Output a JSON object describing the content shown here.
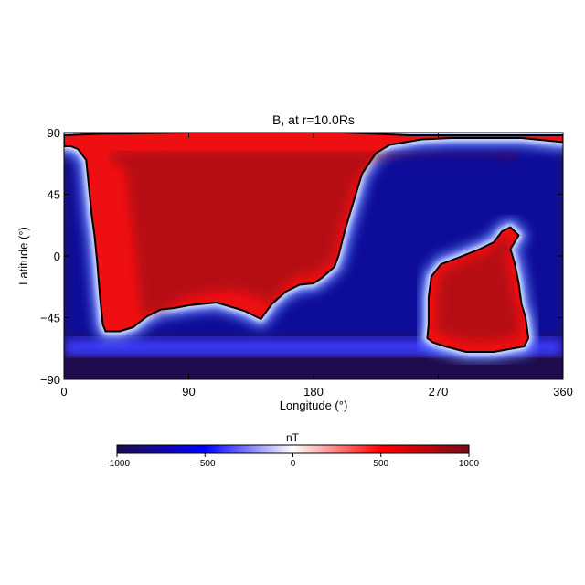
{
  "chart_data": {
    "type": "heatmap",
    "title": "B, at r=10.0Rs",
    "xlabel": "Longitude (°)",
    "ylabel": "Latitude (°)",
    "xlim": [
      0,
      360
    ],
    "ylim": [
      -90,
      90
    ],
    "xticks": [
      0,
      90,
      180,
      270,
      360
    ],
    "yticks": [
      90,
      45,
      0,
      -45,
      -90
    ],
    "colorbar": {
      "label": "nT",
      "range": [
        -1000,
        1000
      ],
      "ticks": [
        -1000,
        -500,
        0,
        500,
        1000
      ],
      "tick_labels": [
        "−1000",
        "−500",
        "0",
        "500",
        "1000"
      ],
      "colormap": "blue-white-red",
      "colors": {
        "min": "#1e0b4e",
        "mid_low": "#0000ff",
        "mid": "#ffffff",
        "mid_high": "#ff0000",
        "max": "#7a0c16"
      }
    },
    "regions": [
      {
        "sign": "positive",
        "value": 800,
        "outline": [
          [
            0,
            88
          ],
          [
            24,
            89
          ],
          [
            90,
            90
          ],
          [
            200,
            90
          ],
          [
            250,
            88
          ],
          [
            360,
            88
          ],
          [
            360,
            83
          ],
          [
            330,
            86
          ],
          [
            280,
            86
          ],
          [
            258,
            85
          ],
          [
            235,
            81
          ],
          [
            225,
            75
          ],
          [
            215,
            60
          ],
          [
            209,
            40
          ],
          [
            203,
            20
          ],
          [
            198,
            0
          ],
          [
            195,
            -8
          ],
          [
            186,
            -16
          ],
          [
            180,
            -20
          ],
          [
            170,
            -21
          ],
          [
            160,
            -26
          ],
          [
            150,
            -35
          ],
          [
            142,
            -46
          ],
          [
            130,
            -40
          ],
          [
            120,
            -37
          ],
          [
            110,
            -34
          ],
          [
            100,
            -35
          ],
          [
            90,
            -36
          ],
          [
            80,
            -38
          ],
          [
            70,
            -39
          ],
          [
            60,
            -44
          ],
          [
            50,
            -52
          ],
          [
            40,
            -55
          ],
          [
            30,
            -55
          ],
          [
            28,
            -50
          ],
          [
            26,
            -30
          ],
          [
            24,
            -5
          ],
          [
            22,
            15
          ],
          [
            20,
            30
          ],
          [
            18,
            50
          ],
          [
            16,
            70
          ],
          [
            10,
            78
          ],
          [
            5,
            80
          ],
          [
            0,
            80
          ]
        ]
      },
      {
        "sign": "positive",
        "value": 800,
        "outline": [
          [
            262,
            -60
          ],
          [
            263,
            -50
          ],
          [
            263,
            -30
          ],
          [
            265,
            -15
          ],
          [
            272,
            -6
          ],
          [
            285,
            -1
          ],
          [
            300,
            5
          ],
          [
            310,
            10
          ],
          [
            316,
            18
          ],
          [
            322,
            21
          ],
          [
            328,
            15
          ],
          [
            322,
            5
          ],
          [
            325,
            -5
          ],
          [
            328,
            -20
          ],
          [
            330,
            -35
          ],
          [
            333,
            -45
          ],
          [
            335,
            -60
          ],
          [
            332,
            -66
          ],
          [
            310,
            -70
          ],
          [
            290,
            -70
          ],
          [
            275,
            -66
          ],
          [
            266,
            -63
          ]
        ]
      }
    ],
    "negative_value": -900
  }
}
